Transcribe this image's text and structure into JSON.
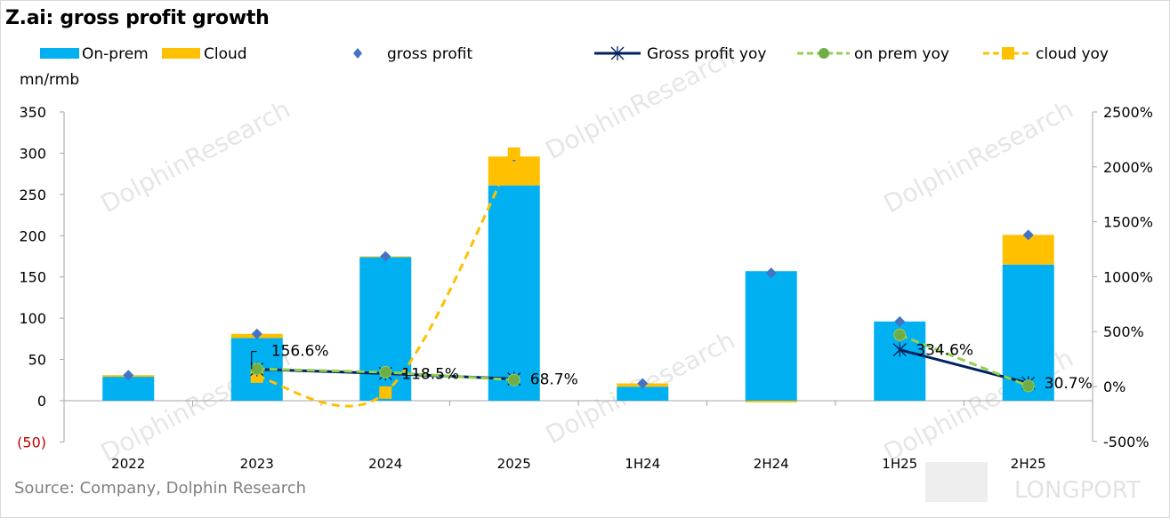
{
  "title": "Z.ai: gross profit growth",
  "unit_label": "mn/rmb",
  "source": "Source:  Company, Dolphin Research",
  "watermark": "DolphinResearch",
  "logo": "LONGPORT",
  "colors": {
    "on_prem": "#00B0F0",
    "cloud": "#FFC000",
    "gross_profit": "#4472C4",
    "gp_yoy": "#002060",
    "on_prem_yoy": "#92D050",
    "on_prem_yoy_marker": "#70AD47",
    "cloud_yoy": "#FFC000",
    "left_negative_tick": "#C00000"
  },
  "chart_data": {
    "type": "bar",
    "title": "Z.ai: gross profit growth",
    "ylabel": "mn/rmb",
    "categories": [
      "2022",
      "2023",
      "2024",
      "2025",
      "1H24",
      "2H24",
      "1H25",
      "2H25"
    ],
    "ylim": [
      -50,
      350
    ],
    "y_ticks": [
      "(50)",
      "0",
      "50",
      "100",
      "150",
      "200",
      "250",
      "300",
      "350"
    ],
    "y2lim": [
      -500,
      2500
    ],
    "y2_ticks": [
      "-500%",
      "0%",
      "500%",
      "1000%",
      "1500%",
      "2000%",
      "2500%"
    ],
    "grid": false,
    "legend_placement": "top",
    "series": [
      {
        "name": "On-prem",
        "type": "stacked-bar",
        "axis": "left",
        "values": [
          29,
          76,
          174,
          261,
          17,
          157,
          96,
          165
        ]
      },
      {
        "name": "Cloud",
        "type": "stacked-bar",
        "axis": "left",
        "values": [
          2,
          5,
          1,
          35,
          4,
          -2,
          0,
          36
        ]
      },
      {
        "name": "gross profit",
        "type": "diamond-marker",
        "axis": "left",
        "values": [
          31,
          81,
          175,
          296,
          21,
          155,
          96,
          201
        ]
      },
      {
        "name": "Gross profit yoy",
        "type": "line",
        "axis": "right",
        "unit": "%",
        "values": [
          null,
          156.6,
          118.5,
          68.7,
          null,
          null,
          334.6,
          30.7
        ],
        "labels": [
          null,
          "156.6%",
          "118.5%",
          "68.7%",
          null,
          null,
          "334.6%",
          "30.7%"
        ]
      },
      {
        "name": "on prem yoy",
        "type": "dashed-line",
        "axis": "right",
        "unit": "%",
        "values": [
          null,
          160,
          130,
          60,
          null,
          null,
          470,
          5
        ]
      },
      {
        "name": "cloud yoy",
        "type": "smooth-dashed-line",
        "axis": "right",
        "unit": "%",
        "values": [
          null,
          90,
          -55,
          2120,
          null,
          null,
          null,
          null
        ]
      }
    ]
  }
}
